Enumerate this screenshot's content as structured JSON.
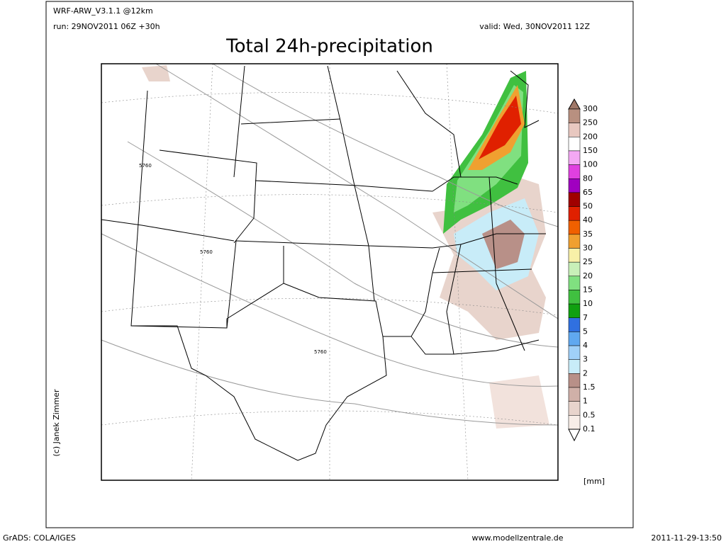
{
  "header": {
    "model": "WRF-ARW_V3.1.1 @12km",
    "run": "run: 29NOV2011 06Z +30h",
    "valid": "valid: Wed, 30NOV2011 12Z"
  },
  "title": "Total 24h-precipitation",
  "credit": "(c) Janek Zimmer",
  "unit": "[mm]",
  "contour_labels": [
    "5760",
    "5760",
    "5760"
  ],
  "colorbar": {
    "labels": [
      300,
      250,
      200,
      150,
      100,
      80,
      65,
      50,
      40,
      35,
      30,
      25,
      20,
      15,
      10,
      7,
      5,
      4,
      3,
      2,
      1.5,
      1,
      0.5,
      0.1
    ],
    "colors": [
      "#b89080",
      "#e8c8c0",
      "#ffffff",
      "#f4a8f4",
      "#e040e0",
      "#a000c0",
      "#a00000",
      "#e02000",
      "#f06000",
      "#f0a030",
      "#f8f0a8",
      "#c8f0b8",
      "#80e080",
      "#40c040",
      "#10a010",
      "#3070e0",
      "#60a8f0",
      "#a0d0f8",
      "#c8ecf8",
      "#b89088",
      "#d0b0a8",
      "#e8d4cc",
      "#f8eee8"
    ],
    "top_color": "#a07868",
    "bottom_color": "#ffffff"
  },
  "footer": {
    "left": "GrADS: COLA/IGES",
    "center": "www.modellzentrale.de",
    "right": "2011-11-29-13:50"
  }
}
